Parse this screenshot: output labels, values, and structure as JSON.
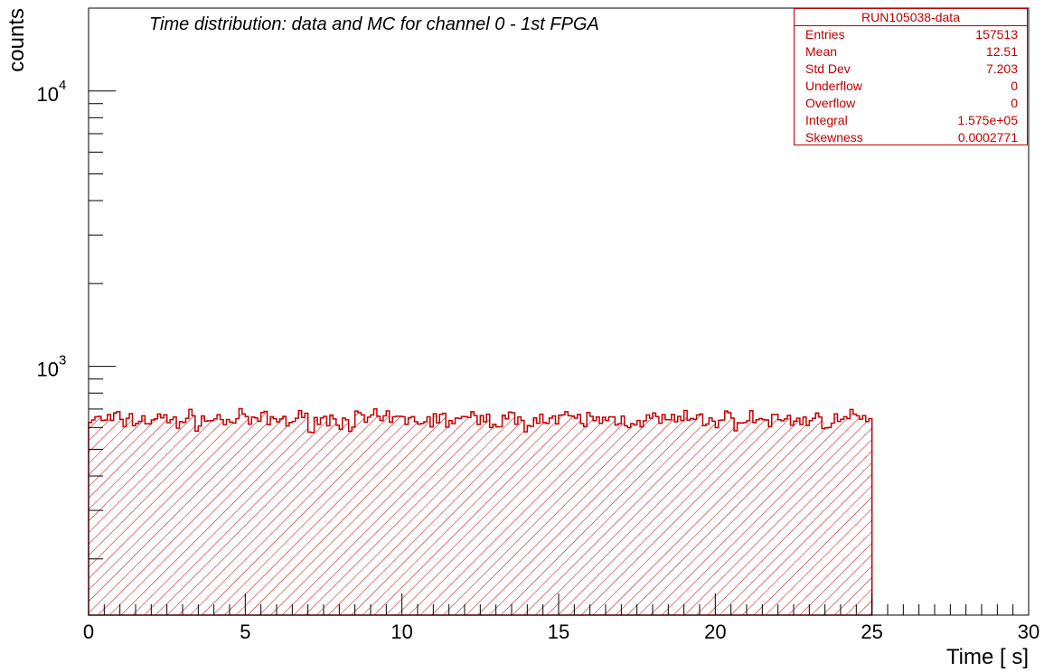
{
  "chart_data": {
    "type": "histogram",
    "title": "Time distribution: data and MC for channel 0 - 1st FPGA",
    "xlabel": "Time [  s]",
    "ylabel": "counts",
    "xlim": [
      0,
      30
    ],
    "ylim_log": [
      125,
      20000
    ],
    "y_scale": "log",
    "x_ticks": [
      "0",
      "5",
      "10",
      "15",
      "20",
      "25",
      "30"
    ],
    "y_ticks": [
      {
        "base": "10",
        "exp": "3",
        "value": 1000
      },
      {
        "base": "10",
        "exp": "4",
        "value": 10000
      }
    ],
    "bin_range": [
      0,
      25
    ],
    "bin_count": 250,
    "bin_level_approx": 640,
    "fill": "hatched",
    "color": "#c00000",
    "grid": false,
    "stats_box": {
      "title": "RUN105038-data",
      "rows": [
        {
          "name": "Entries",
          "value": "157513"
        },
        {
          "name": "Mean",
          "value": "12.51"
        },
        {
          "name": "Std Dev",
          "value": "7.203"
        },
        {
          "name": "Underflow",
          "value": "0"
        },
        {
          "name": "Overflow",
          "value": "0"
        },
        {
          "name": "Integral",
          "value": "1.575e+05"
        },
        {
          "name": "Skewness",
          "value": "0.0002771"
        }
      ]
    }
  }
}
